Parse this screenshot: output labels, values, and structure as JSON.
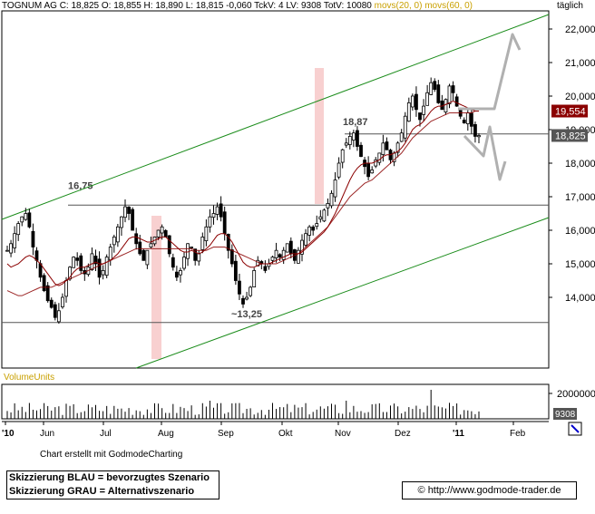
{
  "header": {
    "info": "TOGNUM AG C: 18,825 O: 18,855 H: 18,890 L: 18,815 -0,060 TckV: 4 LV: 9308 TotV: 10080",
    "ma20": "movs(20, 0)",
    "ma60": "movs(60, 0)",
    "period": "täglich"
  },
  "footer": {
    "credit": "Chart erstellt mit GodmodeCharting",
    "legend_blue": "Skizzierung BLAU = bevorzugtes Szenario",
    "legend_grey": "Skizzierung GRAU = Alternativszenario",
    "url": "© http://www.godmode-trader.de"
  },
  "volume": {
    "label": "VolumeUnits",
    "axis_label": "2000000",
    "last_volume": "9308"
  },
  "colors": {
    "candle": "#000000",
    "ma20": "#8b0000",
    "channel": "#1a8c1a",
    "highlight": "#f8d0d0",
    "price_badge_last": "#555555",
    "price_badge_ma": "#8b0000",
    "scenario": "#b0b0b0"
  },
  "chart_data": {
    "type": "candlestick",
    "title": "TOGNUM AG",
    "y_ticks": [
      14000,
      15000,
      16000,
      17000,
      18000,
      19000,
      20000,
      21000,
      22000
    ],
    "y_tick_labels": [
      "14,000",
      "15,000",
      "16,000",
      "17,000",
      "18,000",
      "19,000",
      "20,000",
      "21,000",
      "22,000"
    ],
    "ylim": [
      13000,
      23000
    ],
    "x_tick_labels": [
      "'10",
      "Jun",
      "Jul",
      "Aug",
      "Sep",
      "Okt",
      "Nov",
      "Dez",
      "'11",
      "Feb"
    ],
    "last_price_label": "18,825",
    "ma_price_label": "19,554",
    "annotations": [
      {
        "text": "16,75",
        "level": 16.75
      },
      {
        "text": "18,87",
        "level": 18.87
      },
      {
        "text": "~13,25",
        "level": 13.25
      }
    ],
    "close_series": [
      15.4,
      15.6,
      15.9,
      16.2,
      16.4,
      16.5,
      16.1,
      15.5,
      15.1,
      14.6,
      14.2,
      13.9,
      13.7,
      13.4,
      13.6,
      14.0,
      14.5,
      14.9,
      15.2,
      15.1,
      14.8,
      14.7,
      14.9,
      15.3,
      15.0,
      14.6,
      14.8,
      15.2,
      15.5,
      15.8,
      16.1,
      16.4,
      16.7,
      16.5,
      16.0,
      15.6,
      15.3,
      15.1,
      15.4,
      15.6,
      15.8,
      16.0,
      16.1,
      15.8,
      15.3,
      14.9,
      14.6,
      14.8,
      15.2,
      15.6,
      15.5,
      15.1,
      15.3,
      15.8,
      16.1,
      16.4,
      16.5,
      16.7,
      16.4,
      15.9,
      15.4,
      15.0,
      14.5,
      14.1,
      13.8,
      14.0,
      14.3,
      14.8,
      15.1,
      15.0,
      14.8,
      15.0,
      15.2,
      15.4,
      15.2,
      15.4,
      15.6,
      15.3,
      15.1,
      15.4,
      15.7,
      15.9,
      16.1,
      16.0,
      16.2,
      16.4,
      16.6,
      16.8,
      17.1,
      17.5,
      18.0,
      18.4,
      18.6,
      18.8,
      18.9,
      18.5,
      18.2,
      17.9,
      17.6,
      17.8,
      18.1,
      18.3,
      18.6,
      18.4,
      18.1,
      18.3,
      18.6,
      18.9,
      19.4,
      19.8,
      20.0,
      19.6,
      19.3,
      19.7,
      20.1,
      20.4,
      20.2,
      19.8,
      19.6,
      19.9,
      20.3,
      20.1,
      19.7,
      19.4,
      19.2,
      19.5,
      19.1,
      18.8,
      18.825
    ],
    "ma_series": [
      15.0,
      14.9,
      14.95,
      15.0,
      15.1,
      15.2,
      15.25,
      15.2,
      15.1,
      15.0,
      14.85,
      14.7,
      14.55,
      14.4,
      14.35,
      14.4,
      14.5,
      14.6,
      14.75,
      14.85,
      14.9,
      14.9,
      14.95,
      15.0,
      15.05,
      15.0,
      15.0,
      15.05,
      15.1,
      15.2,
      15.3,
      15.45,
      15.6,
      15.75,
      15.8,
      15.8,
      15.75,
      15.7,
      15.65,
      15.65,
      15.7,
      15.75,
      15.8,
      15.8,
      15.7,
      15.6,
      15.5,
      15.4,
      15.35,
      15.35,
      15.4,
      15.35,
      15.3,
      15.35,
      15.45,
      15.55,
      15.7,
      15.85,
      15.9,
      15.9,
      15.8,
      15.65,
      15.45,
      15.25,
      15.05,
      14.95,
      14.9,
      14.9,
      14.95,
      15.0,
      15.0,
      15.0,
      15.05,
      15.1,
      15.15,
      15.2,
      15.25,
      15.3,
      15.3,
      15.3,
      15.35,
      15.45,
      15.55,
      15.65,
      15.75,
      15.85,
      15.95,
      16.1,
      16.3,
      16.5,
      16.75,
      17.0,
      17.25,
      17.5,
      17.7,
      17.85,
      17.95,
      18.0,
      18.0,
      18.0,
      18.05,
      18.1,
      18.2,
      18.25,
      18.25,
      18.3,
      18.35,
      18.45,
      18.6,
      18.8,
      19.0,
      19.1,
      19.15,
      19.25,
      19.4,
      19.55,
      19.65,
      19.7,
      19.7,
      19.75,
      19.8,
      19.85,
      19.8,
      19.75,
      19.7,
      19.65,
      19.6,
      19.554,
      19.554
    ],
    "ma60_series": [
      14.2,
      14.15,
      14.1,
      14.05,
      14.05,
      14.1,
      14.15,
      14.2,
      14.25,
      14.3,
      14.3,
      14.3,
      14.3,
      14.35,
      14.4,
      14.45,
      14.5,
      14.55,
      14.6,
      14.65,
      14.7,
      14.75,
      14.8,
      14.85,
      14.9,
      14.95,
      15.0,
      15.05,
      15.1,
      15.15,
      15.2,
      15.25,
      15.3,
      15.35,
      15.4,
      15.45,
      15.45,
      15.45,
      15.45,
      15.45,
      15.45,
      15.45,
      15.45,
      15.45,
      15.45,
      15.45,
      15.45,
      15.45,
      15.45,
      15.45,
      15.45,
      15.4,
      15.4,
      15.4,
      15.4,
      15.45,
      15.5,
      15.5,
      15.5,
      15.5,
      15.45,
      15.4,
      15.35,
      15.3,
      15.25,
      15.2,
      15.15,
      15.1,
      15.05,
      15.0,
      15.0,
      15.0,
      15.0,
      15.0,
      15.05,
      15.1,
      15.15,
      15.2,
      15.25,
      15.3,
      15.4,
      15.5,
      15.6,
      15.7,
      15.8,
      15.9,
      16.0,
      16.1,
      16.25,
      16.4,
      16.55,
      16.7,
      16.85,
      17.0,
      17.1,
      17.2,
      17.3,
      17.4,
      17.45,
      17.5,
      17.6,
      17.7,
      17.8,
      17.9,
      18.0,
      18.1,
      18.2,
      18.3,
      18.45,
      18.6,
      18.75,
      18.85,
      18.95,
      19.05,
      19.15,
      19.25,
      19.3,
      19.35,
      19.4,
      19.45,
      19.5,
      19.5,
      19.5,
      19.5,
      19.5,
      19.5,
      19.5,
      19.554,
      19.554
    ]
  }
}
